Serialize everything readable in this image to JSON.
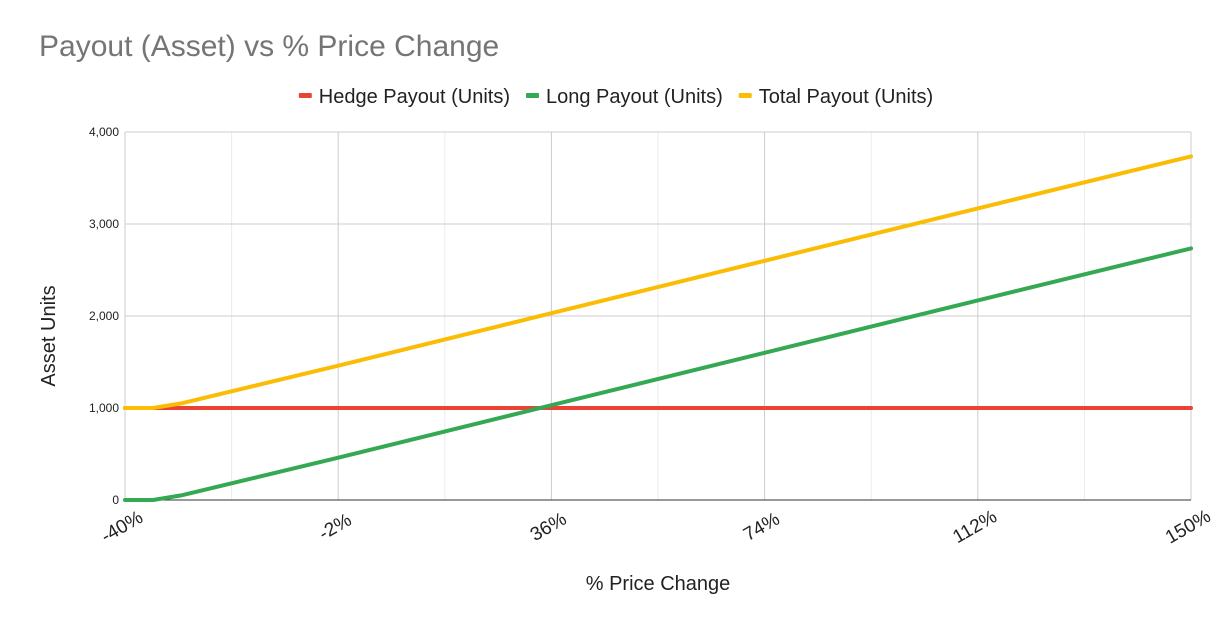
{
  "chart_data": {
    "type": "line",
    "title": "Payout (Asset) vs % Price Change",
    "xlabel": "% Price Change",
    "ylabel": "Asset Units",
    "x_unit": "%",
    "xlim": [
      -40,
      150
    ],
    "ylim": [
      0,
      4000
    ],
    "x_ticks": [
      "-40%",
      "-2%",
      "36%",
      "74%",
      "112%",
      "150%"
    ],
    "y_ticks": [
      "0",
      "1,000",
      "2,000",
      "3,000",
      "4,000"
    ],
    "grid": true,
    "legend_position": "top",
    "x": [
      -40,
      -35,
      -30,
      -2,
      36,
      74,
      112,
      150
    ],
    "series": [
      {
        "name": "Hedge Payout (Units)",
        "color": "#ea4335",
        "values": [
          1000,
          1000,
          1000,
          1000,
          1000,
          1000,
          1000,
          1000
        ]
      },
      {
        "name": "Long Payout (Units)",
        "color": "#34a853",
        "values": [
          0,
          0,
          50,
          460,
          1030,
          1600,
          2170,
          2735
        ]
      },
      {
        "name": "Total Payout (Units)",
        "color": "#fbbc04",
        "values": [
          1000,
          1000,
          1050,
          1460,
          2030,
          2600,
          3170,
          3735
        ]
      }
    ]
  }
}
